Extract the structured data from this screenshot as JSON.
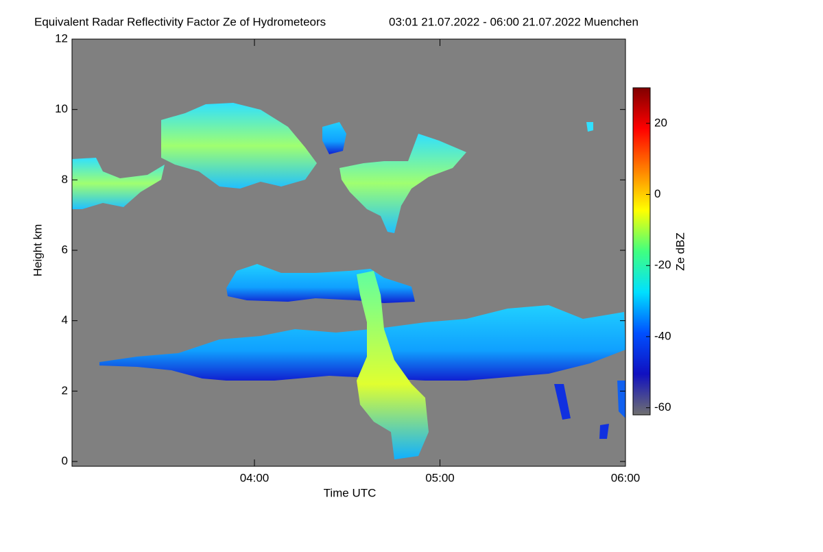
{
  "chart_data": {
    "type": "heatmap",
    "title": "Equivalent Radar Reflectivity Factor Ze of Hydrometeors",
    "subtitle": "03:01 21.07.2022 - 06:00 21.07.2022 Muenchen",
    "x_label": "Time UTC",
    "y_label": "Height km",
    "xlim": [
      181,
      360
    ],
    "xticks": [
      {
        "value": 240,
        "label": "04:00"
      },
      {
        "value": 300,
        "label": "05:00"
      },
      {
        "value": 360,
        "label": "06:00"
      }
    ],
    "ylim": [
      0,
      12
    ],
    "yticks": [
      0,
      2,
      4,
      6,
      8,
      10,
      12
    ],
    "background": "#808080",
    "colorbar": {
      "label": "Ze dBZ",
      "lim": [
        -62,
        30
      ],
      "ticks": [
        -60,
        -40,
        -20,
        0,
        20
      ],
      "colors": [
        "#707070",
        "#1010c0",
        "#0050ff",
        "#00e0ff",
        "#40ff80",
        "#ffff00",
        "#ff8000",
        "#ff0000",
        "#800000"
      ]
    }
  }
}
